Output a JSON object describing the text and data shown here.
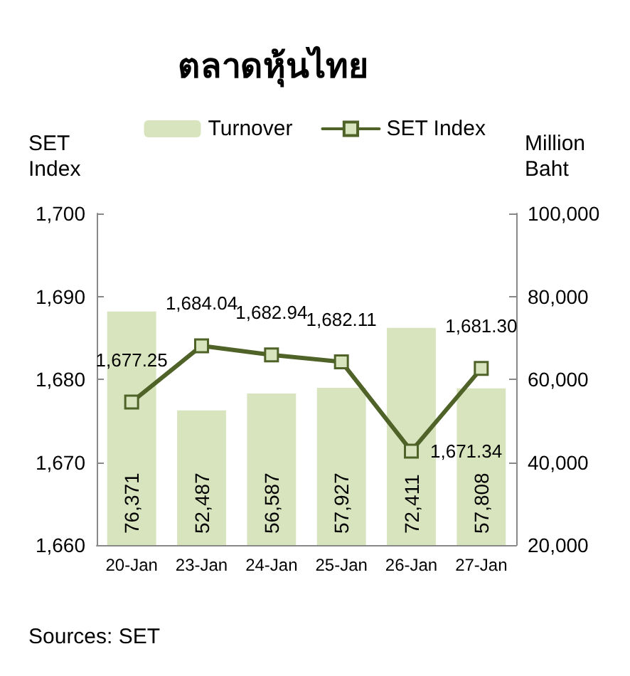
{
  "chart_data": {
    "type": "bar",
    "title": "ตลาดหุ้นไทย",
    "ylabel": "SET Index",
    "y2label": "Million Baht",
    "categories": [
      "20-Jan",
      "23-Jan",
      "24-Jan",
      "25-Jan",
      "26-Jan",
      "27-Jan"
    ],
    "series": [
      {
        "name": "Turnover",
        "axis": "y2",
        "color": "#d7e4bd",
        "values": [
          76371,
          52487,
          56587,
          57927,
          72411,
          57808
        ],
        "value_labels": [
          "76,371",
          "52,487",
          "56,587",
          "57,927",
          "72,411",
          "57,808"
        ]
      },
      {
        "name": "SET Index",
        "type": "line",
        "color": "#4f6228",
        "values": [
          1677.25,
          1684.04,
          1682.94,
          1682.11,
          1671.34,
          1681.3
        ],
        "value_labels": [
          "1,677.25",
          "1,684.04",
          "1,682.94",
          "1,682.11",
          "1,671.34",
          "1,681.30"
        ]
      }
    ],
    "ylim": [
      1660,
      1700
    ],
    "yticks": [
      {
        "value": 1660,
        "label": "1,660"
      },
      {
        "value": 1670,
        "label": "1,670"
      },
      {
        "value": 1680,
        "label": "1,680"
      },
      {
        "value": 1690,
        "label": "1,690"
      },
      {
        "value": 1700,
        "label": "1,700"
      }
    ],
    "y2lim": [
      20000,
      100000
    ],
    "y2ticks": [
      {
        "value": 20000,
        "label": "20,000"
      },
      {
        "value": 40000,
        "label": "40,000"
      },
      {
        "value": 60000,
        "label": "60,000"
      },
      {
        "value": 80000,
        "label": "80,000"
      },
      {
        "value": 100000,
        "label": "100,000"
      }
    ],
    "grid": false,
    "legend": "top",
    "marker": "square",
    "line_style": "solid",
    "annotations": [
      "Sources: SET"
    ]
  }
}
